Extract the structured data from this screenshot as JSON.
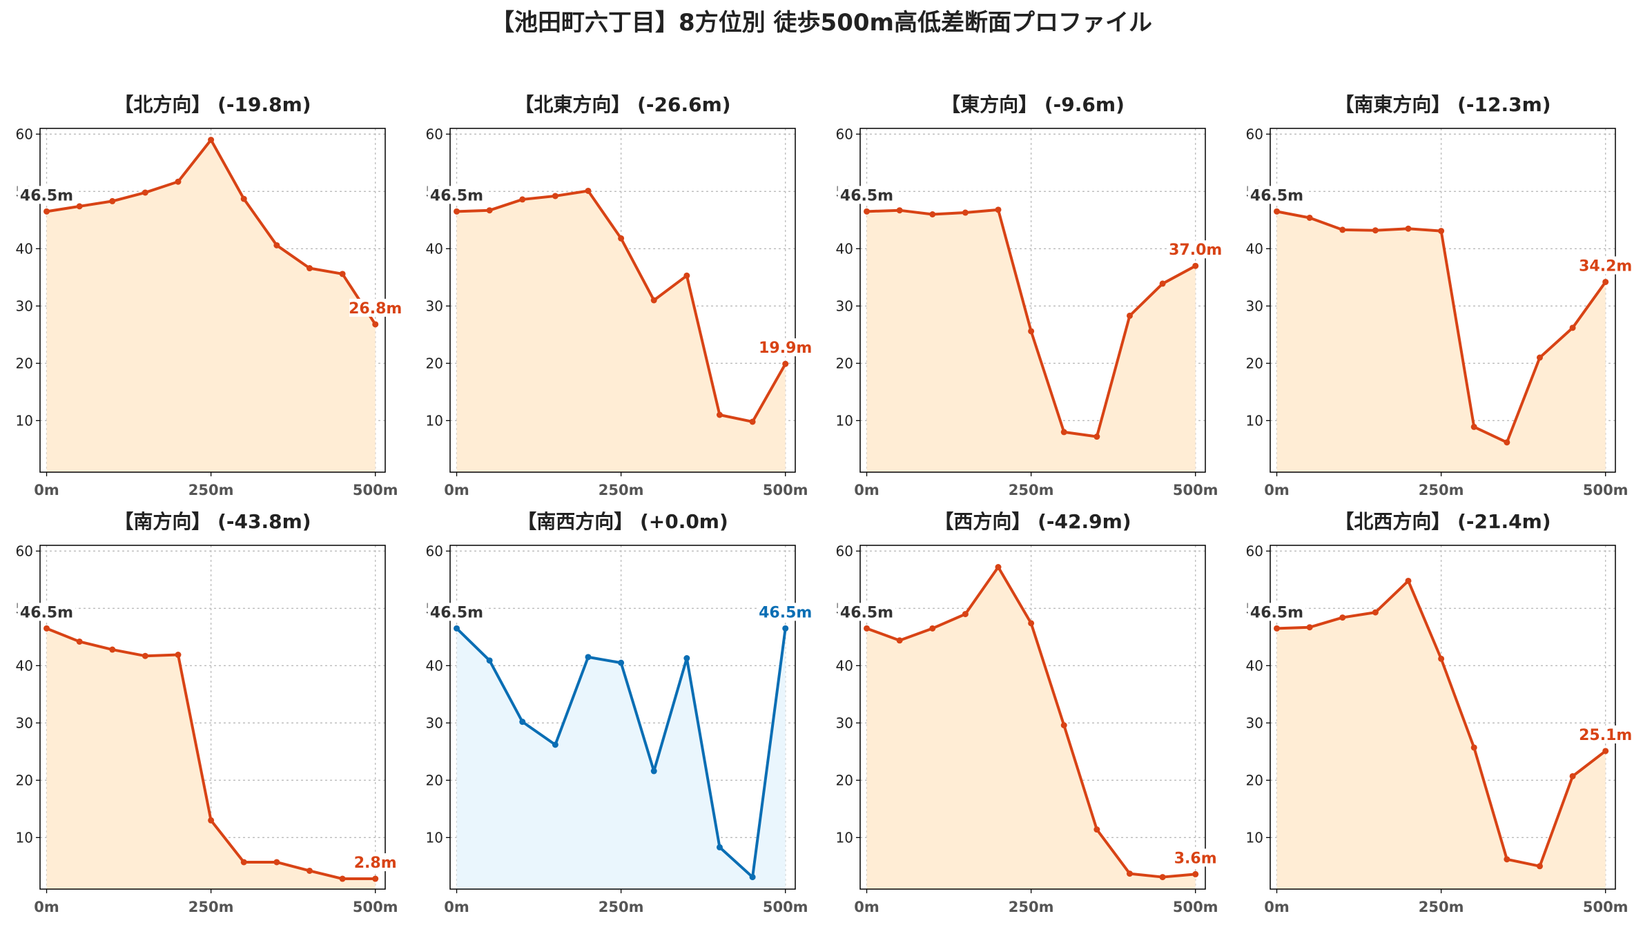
{
  "title": "【池田町六丁目】8方位別 徒歩500m高低差断面プロファイル",
  "colors": {
    "down_line": "#d84315",
    "down_fill": "#ffedd5",
    "flat_line": "#0a6eb4",
    "flat_fill": "#eaf6fd",
    "start_label": "#333333"
  },
  "chart_data": [
    {
      "type": "area",
      "title": "【北方向】 (-19.8m)",
      "trend": "down",
      "x": [
        0,
        50,
        100,
        150,
        200,
        250,
        300,
        350,
        400,
        450,
        500
      ],
      "y": [
        46.5,
        47.4,
        48.3,
        49.8,
        51.7,
        59.0,
        48.7,
        40.6,
        36.6,
        35.6,
        26.8
      ],
      "start_label": "46.5m",
      "end_label": "26.8m",
      "xticks": [
        "0m",
        "250m",
        "500m"
      ],
      "yticks": [
        10,
        20,
        30,
        40,
        50,
        60
      ],
      "xlim": [
        -10,
        515
      ],
      "ylim": [
        1,
        61
      ],
      "grid": true
    },
    {
      "type": "area",
      "title": "【北東方向】 (-26.6m)",
      "trend": "down",
      "x": [
        0,
        50,
        100,
        150,
        200,
        250,
        300,
        350,
        400,
        450,
        500
      ],
      "y": [
        46.5,
        46.7,
        48.6,
        49.2,
        50.1,
        41.8,
        31.0,
        35.3,
        11.0,
        9.8,
        19.9
      ],
      "start_label": "46.5m",
      "end_label": "19.9m",
      "xticks": [
        "0m",
        "250m",
        "500m"
      ],
      "yticks": [
        10,
        20,
        30,
        40,
        50,
        60
      ],
      "xlim": [
        -10,
        515
      ],
      "ylim": [
        1,
        61
      ],
      "grid": true
    },
    {
      "type": "area",
      "title": "【東方向】 (-9.6m)",
      "trend": "down",
      "x": [
        0,
        50,
        100,
        150,
        200,
        250,
        300,
        350,
        400,
        450,
        500
      ],
      "y": [
        46.5,
        46.7,
        46.0,
        46.3,
        46.8,
        25.6,
        8.0,
        7.2,
        28.3,
        33.9,
        37.0
      ],
      "start_label": "46.5m",
      "end_label": "37.0m",
      "xticks": [
        "0m",
        "250m",
        "500m"
      ],
      "yticks": [
        10,
        20,
        30,
        40,
        50,
        60
      ],
      "xlim": [
        -10,
        515
      ],
      "ylim": [
        1,
        61
      ],
      "grid": true
    },
    {
      "type": "area",
      "title": "【南東方向】 (-12.3m)",
      "trend": "down",
      "x": [
        0,
        50,
        100,
        150,
        200,
        250,
        300,
        350,
        400,
        450,
        500
      ],
      "y": [
        46.5,
        45.4,
        43.3,
        43.2,
        43.5,
        43.1,
        8.9,
        6.2,
        21.0,
        26.2,
        34.2
      ],
      "start_label": "46.5m",
      "end_label": "34.2m",
      "xticks": [
        "0m",
        "250m",
        "500m"
      ],
      "yticks": [
        10,
        20,
        30,
        40,
        50,
        60
      ],
      "xlim": [
        -10,
        515
      ],
      "ylim": [
        1,
        61
      ],
      "grid": true
    },
    {
      "type": "area",
      "title": "【南方向】 (-43.8m)",
      "trend": "down",
      "x": [
        0,
        50,
        100,
        150,
        200,
        250,
        300,
        350,
        400,
        450,
        500
      ],
      "y": [
        46.5,
        44.2,
        42.8,
        41.7,
        41.9,
        13.0,
        5.7,
        5.7,
        4.2,
        2.8,
        2.8
      ],
      "start_label": "46.5m",
      "end_label": "2.8m",
      "xticks": [
        "0m",
        "250m",
        "500m"
      ],
      "yticks": [
        10,
        20,
        30,
        40,
        50,
        60
      ],
      "xlim": [
        -10,
        515
      ],
      "ylim": [
        1,
        61
      ],
      "grid": true
    },
    {
      "type": "area",
      "title": "【南西方向】 (+0.0m)",
      "trend": "flat",
      "x": [
        0,
        50,
        100,
        150,
        200,
        250,
        300,
        350,
        400,
        450,
        500
      ],
      "y": [
        46.5,
        40.9,
        30.2,
        26.2,
        41.5,
        40.5,
        21.6,
        41.3,
        8.3,
        3.1,
        46.5
      ],
      "start_label": "46.5m",
      "end_label": "46.5m",
      "xticks": [
        "0m",
        "250m",
        "500m"
      ],
      "yticks": [
        10,
        20,
        30,
        40,
        50,
        60
      ],
      "xlim": [
        -10,
        515
      ],
      "ylim": [
        1,
        61
      ],
      "grid": true
    },
    {
      "type": "area",
      "title": "【西方向】 (-42.9m)",
      "trend": "down",
      "x": [
        0,
        50,
        100,
        150,
        200,
        250,
        300,
        350,
        400,
        450,
        500
      ],
      "y": [
        46.5,
        44.4,
        46.5,
        49.0,
        57.2,
        47.4,
        29.6,
        11.4,
        3.7,
        3.1,
        3.6
      ],
      "start_label": "46.5m",
      "end_label": "3.6m",
      "xticks": [
        "0m",
        "250m",
        "500m"
      ],
      "yticks": [
        10,
        20,
        30,
        40,
        50,
        60
      ],
      "xlim": [
        -10,
        515
      ],
      "ylim": [
        1,
        61
      ],
      "grid": true
    },
    {
      "type": "area",
      "title": "【北西方向】 (-21.4m)",
      "trend": "down",
      "x": [
        0,
        50,
        100,
        150,
        200,
        250,
        300,
        350,
        400,
        450,
        500
      ],
      "y": [
        46.5,
        46.7,
        48.4,
        49.3,
        54.8,
        41.2,
        25.7,
        6.2,
        5.0,
        20.7,
        25.1
      ],
      "start_label": "46.5m",
      "end_label": "25.1m",
      "xticks": [
        "0m",
        "250m",
        "500m"
      ],
      "yticks": [
        10,
        20,
        30,
        40,
        50,
        60
      ],
      "xlim": [
        -10,
        515
      ],
      "ylim": [
        1,
        61
      ],
      "grid": true
    }
  ]
}
